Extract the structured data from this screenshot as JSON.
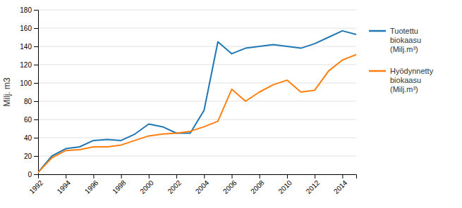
{
  "chart_data": {
    "type": "line",
    "x": [
      1992,
      1993,
      1994,
      1995,
      1996,
      1997,
      1998,
      1999,
      2000,
      2001,
      2002,
      2003,
      2004,
      2005,
      2006,
      2007,
      2008,
      2009,
      2010,
      2011,
      2012,
      2013,
      2014,
      2015
    ],
    "series": [
      {
        "name": "Tuotettu\nbiokaasu\n(Milj.m³)",
        "values": [
          2,
          20,
          28,
          30,
          37,
          38,
          37,
          44,
          55,
          52,
          45,
          45,
          70,
          145,
          132,
          138,
          140,
          142,
          140,
          138,
          143,
          150,
          157,
          153
        ]
      },
      {
        "name": "Hyödynnetty\nbiokaasu\n(Milj.m³)",
        "values": [
          2,
          18,
          26,
          27,
          30,
          30,
          32,
          37,
          42,
          44,
          45,
          47,
          52,
          58,
          93,
          80,
          90,
          98,
          103,
          90,
          92,
          113,
          125,
          131
        ]
      }
    ],
    "ylabel": "Milj. m3",
    "xlim": [
      1992,
      2015
    ],
    "xticks": [
      1992,
      1994,
      1996,
      1998,
      2000,
      2002,
      2004,
      2006,
      2008,
      2010,
      2012,
      2014
    ],
    "ylim": [
      0,
      180
    ],
    "yticks": [
      0,
      20,
      40,
      60,
      80,
      100,
      120,
      140,
      160,
      180
    ],
    "grid": true,
    "legend": "right"
  }
}
